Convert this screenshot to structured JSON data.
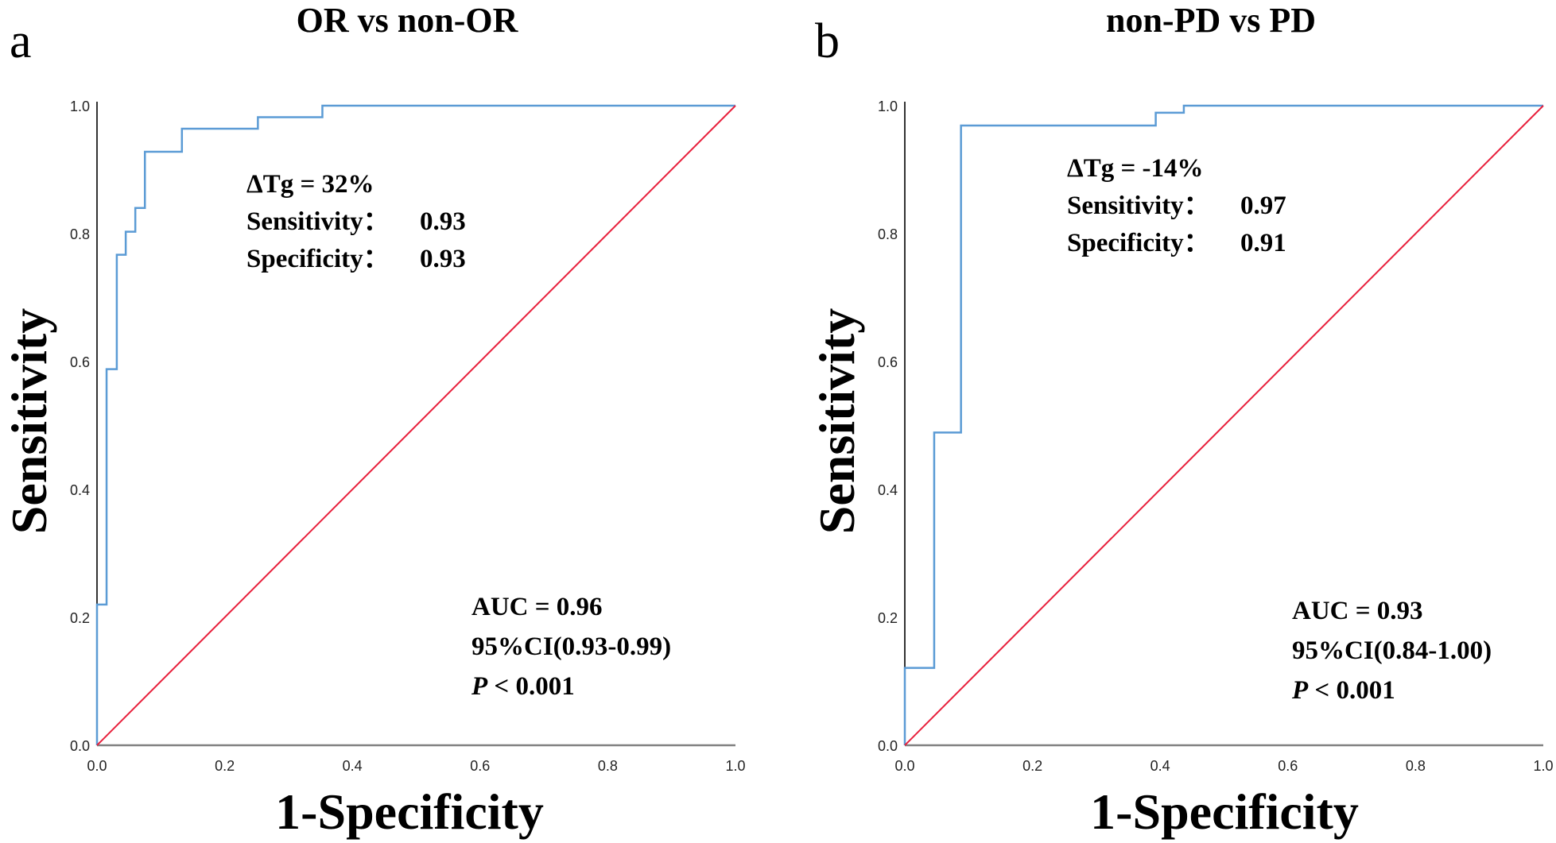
{
  "chart_data": [
    {
      "type": "line",
      "panel_label": "a",
      "title": "OR vs non-OR",
      "xlabel": "1-Specificity",
      "ylabel": "Sensitivity",
      "xlim": [
        0,
        1
      ],
      "ylim": [
        0,
        1
      ],
      "xticks": [
        "0.0",
        "0.2",
        "0.4",
        "0.6",
        "0.8",
        "1.0"
      ],
      "yticks": [
        "0.0",
        "0.2",
        "0.4",
        "0.6",
        "0.8",
        "1.0"
      ],
      "grid": false,
      "series": [
        {
          "kind": "roc-step",
          "color": "#5b9bd5",
          "x": [
            0,
            0,
            0.015,
            0.015,
            0.031,
            0.031,
            0.045,
            0.045,
            0.06,
            0.06,
            0.075,
            0.075,
            0.133,
            0.133,
            0.252,
            0.252,
            0.353,
            0.353,
            1.0
          ],
          "y": [
            0,
            0.22,
            0.22,
            0.588,
            0.588,
            0.767,
            0.767,
            0.803,
            0.803,
            0.84,
            0.84,
            0.928,
            0.928,
            0.964,
            0.964,
            0.982,
            0.982,
            1.0,
            1.0
          ]
        },
        {
          "kind": "reference",
          "color": "#e8203c",
          "x": [
            0,
            1
          ],
          "y": [
            0,
            1
          ]
        }
      ],
      "annotations": {
        "cutoff": "ΔTg = 32%",
        "sensitivity_label": "Sensitivity：",
        "sensitivity_value": "0.93",
        "specificity_label": "Specificity：",
        "specificity_value": "0.93",
        "auc": "AUC = 0.96",
        "ci": "95%CI(0.93-0.99)",
        "p_symbol": "P",
        "p_value": " < 0.001"
      }
    },
    {
      "type": "line",
      "panel_label": "b",
      "title": "non-PD vs PD",
      "xlabel": "1-Specificity",
      "ylabel": "Sensitivity",
      "xlim": [
        0,
        1
      ],
      "ylim": [
        0,
        1
      ],
      "xticks": [
        "0.0",
        "0.2",
        "0.4",
        "0.6",
        "0.8",
        "1.0"
      ],
      "yticks": [
        "0.0",
        "0.2",
        "0.4",
        "0.6",
        "0.8",
        "1.0"
      ],
      "grid": false,
      "series": [
        {
          "kind": "roc-step",
          "color": "#5b9bd5",
          "x": [
            0,
            0,
            0.046,
            0.046,
            0.088,
            0.088,
            0.393,
            0.393,
            0.437,
            0.437,
            1.0
          ],
          "y": [
            0,
            0.121,
            0.121,
            0.489,
            0.489,
            0.969,
            0.969,
            0.989,
            0.989,
            1.0,
            1.0
          ]
        },
        {
          "kind": "reference",
          "color": "#e8203c",
          "x": [
            0,
            1
          ],
          "y": [
            0,
            1
          ]
        }
      ],
      "annotations": {
        "cutoff": "ΔTg = -14%",
        "sensitivity_label": "Sensitivity：",
        "sensitivity_value": "0.97",
        "specificity_label": "Specificity：",
        "specificity_value": "0.91",
        "auc": "AUC = 0.93",
        "ci": "95%CI(0.84-1.00)",
        "p_symbol": "P",
        "p_value": " < 0.001"
      }
    }
  ]
}
